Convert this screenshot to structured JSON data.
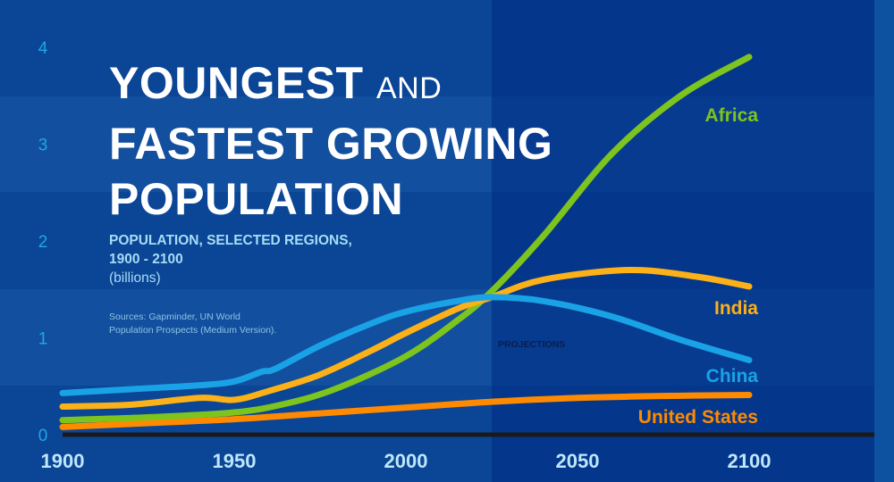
{
  "title": {
    "line1": "YOUNGEST",
    "line1_suffix": "AND",
    "line2": "FASTEST GROWING",
    "line3": "POPULATION"
  },
  "subtitle": {
    "line1": "POPULATION, SELECTED REGIONS,",
    "line2": "1900 - 2100",
    "unit": "(billions)"
  },
  "sources": {
    "line1": "Sources: Gapminder, UN World",
    "line2": "Population Prospects (Medium Version)."
  },
  "projection_label": "PROJECTIONS",
  "chart_data": {
    "type": "line",
    "title": "Youngest and Fastest Growing Population",
    "xlabel": "",
    "ylabel": "billions",
    "xlim": [
      1900,
      2100
    ],
    "ylim": [
      0,
      4
    ],
    "xticks": [
      "1900",
      "1950",
      "2000",
      "2050",
      "2100"
    ],
    "yticks": [
      "0",
      "1",
      "2",
      "3",
      "4"
    ],
    "projection_start": 2025,
    "series": [
      {
        "name": "China",
        "color": "#19a3e6",
        "x": [
          1900,
          1920,
          1940,
          1950,
          1958,
          1962,
          1975,
          1990,
          2000,
          2015,
          2025,
          2040,
          2060,
          2080,
          2100
        ],
        "values": [
          0.43,
          0.47,
          0.51,
          0.55,
          0.65,
          0.68,
          0.92,
          1.15,
          1.27,
          1.38,
          1.42,
          1.38,
          1.22,
          0.98,
          0.77
        ]
      },
      {
        "name": "India",
        "color": "#fbb117",
        "x": [
          1900,
          1920,
          1940,
          1950,
          1960,
          1975,
          1990,
          2000,
          2015,
          2025,
          2040,
          2065,
          2085,
          2100
        ],
        "values": [
          0.29,
          0.31,
          0.38,
          0.36,
          0.45,
          0.62,
          0.87,
          1.05,
          1.3,
          1.42,
          1.6,
          1.7,
          1.63,
          1.53
        ]
      },
      {
        "name": "Africa",
        "color": "#7dc41e",
        "x": [
          1900,
          1925,
          1950,
          1965,
          1980,
          2000,
          2015,
          2025,
          2040,
          2060,
          2080,
          2100
        ],
        "values": [
          0.15,
          0.18,
          0.23,
          0.32,
          0.48,
          0.81,
          1.18,
          1.48,
          2.05,
          2.9,
          3.5,
          3.9
        ]
      },
      {
        "name": "United States",
        "color": "#ff8a00",
        "x": [
          1900,
          1925,
          1950,
          1975,
          2000,
          2025,
          2050,
          2075,
          2100
        ],
        "values": [
          0.08,
          0.12,
          0.16,
          0.22,
          0.28,
          0.34,
          0.38,
          0.4,
          0.41
        ]
      }
    ]
  }
}
